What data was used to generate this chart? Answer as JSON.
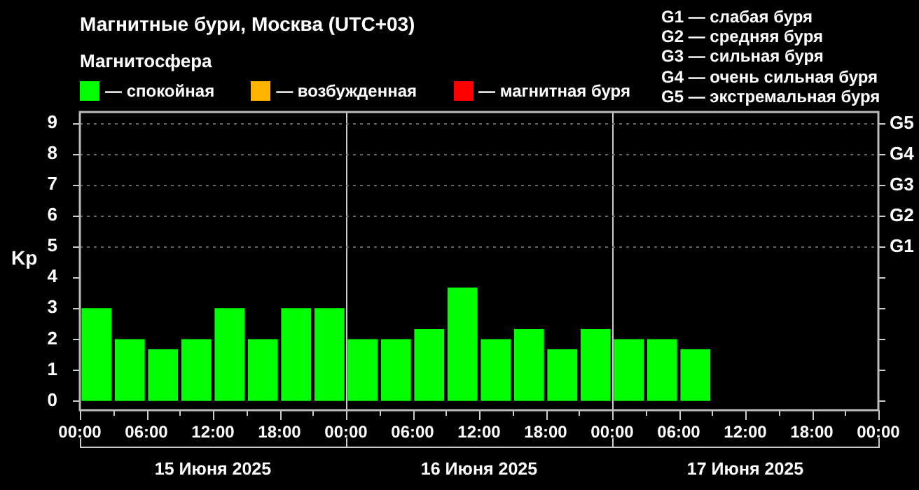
{
  "chart_data": {
    "type": "bar",
    "title": "Магнитные бури, Москва (UTC+03)",
    "legend_title": "Магнитосфера",
    "ylabel": "Kp",
    "x": [
      "2025-06-15T01:30",
      "2025-06-15T04:30",
      "2025-06-15T07:30",
      "2025-06-15T10:30",
      "2025-06-15T13:30",
      "2025-06-15T16:30",
      "2025-06-15T19:30",
      "2025-06-15T22:30",
      "2025-06-16T01:30",
      "2025-06-16T04:30",
      "2025-06-16T07:30",
      "2025-06-16T10:30",
      "2025-06-16T13:30",
      "2025-06-16T16:30",
      "2025-06-16T19:30",
      "2025-06-16T22:30",
      "2025-06-17T01:30",
      "2025-06-17T04:30",
      "2025-06-17T07:30"
    ],
    "series": [
      {
        "name": "— спокойная",
        "color": "#00ff00",
        "values": [
          3,
          2,
          1.67,
          2,
          3,
          2,
          3,
          3,
          2,
          2,
          2.33,
          3.67,
          2,
          2.33,
          1.67,
          2.33,
          2,
          2,
          1.67
        ]
      },
      {
        "name": "— возбужденная",
        "color": "#ffb400",
        "values": [
          null,
          null,
          null,
          null,
          null,
          null,
          null,
          null,
          null,
          null,
          null,
          null,
          null,
          null,
          null,
          null,
          null,
          null,
          null
        ]
      },
      {
        "name": "— магнитная буря",
        "color": "#ff0000",
        "values": [
          null,
          null,
          null,
          null,
          null,
          null,
          null,
          null,
          null,
          null,
          null,
          null,
          null,
          null,
          null,
          null,
          null,
          null,
          null
        ]
      }
    ],
    "xlim": [
      "2025-06-15T00:00",
      "2025-06-18T00:00"
    ],
    "xticks": [
      {
        "value": "2025-06-15T00:00",
        "label": "00:00"
      },
      {
        "value": "2025-06-15T03:00",
        "label": null
      },
      {
        "value": "2025-06-15T06:00",
        "label": "06:00"
      },
      {
        "value": "2025-06-15T09:00",
        "label": null
      },
      {
        "value": "2025-06-15T12:00",
        "label": "12:00"
      },
      {
        "value": "2025-06-15T15:00",
        "label": null
      },
      {
        "value": "2025-06-15T18:00",
        "label": "18:00"
      },
      {
        "value": "2025-06-15T21:00",
        "label": null
      },
      {
        "value": "2025-06-16T00:00",
        "label": "00:00"
      },
      {
        "value": "2025-06-16T03:00",
        "label": null
      },
      {
        "value": "2025-06-16T06:00",
        "label": "06:00"
      },
      {
        "value": "2025-06-16T09:00",
        "label": null
      },
      {
        "value": "2025-06-16T12:00",
        "label": "12:00"
      },
      {
        "value": "2025-06-16T15:00",
        "label": null
      },
      {
        "value": "2025-06-16T18:00",
        "label": "18:00"
      },
      {
        "value": "2025-06-16T21:00",
        "label": null
      },
      {
        "value": "2025-06-17T00:00",
        "label": "00:00"
      },
      {
        "value": "2025-06-17T03:00",
        "label": null
      },
      {
        "value": "2025-06-17T06:00",
        "label": "06:00"
      },
      {
        "value": "2025-06-17T09:00",
        "label": null
      },
      {
        "value": "2025-06-17T12:00",
        "label": "12:00"
      },
      {
        "value": "2025-06-17T15:00",
        "label": null
      },
      {
        "value": "2025-06-17T18:00",
        "label": "18:00"
      },
      {
        "value": "2025-06-17T21:00",
        "label": null
      },
      {
        "value": "2025-06-18T00:00",
        "label": "00:00"
      }
    ],
    "ylim": [
      -0.3,
      9.35
    ],
    "yticks": [
      0,
      1,
      2,
      3,
      4,
      5,
      6,
      7,
      8,
      9
    ],
    "ref_lines": [
      {
        "axis": "x",
        "value": "2025-06-16T00:00",
        "color": "#cccccc"
      },
      {
        "axis": "x",
        "value": "2025-06-17T00:00",
        "color": "#cccccc"
      },
      {
        "axis": "y",
        "value": 5,
        "label": "G1",
        "color": "#666666",
        "line_style": "dotted"
      },
      {
        "axis": "y",
        "value": 6,
        "label": "G2",
        "color": "#666666",
        "line_style": "dotted"
      },
      {
        "axis": "y",
        "value": 7,
        "label": "G3",
        "color": "#666666",
        "line_style": "dotted"
      },
      {
        "axis": "y",
        "value": 8,
        "label": "G4",
        "color": "#666666",
        "line_style": "dotted"
      },
      {
        "axis": "y",
        "value": 9,
        "label": "G5",
        "color": "#666666",
        "line_style": "dotted"
      }
    ],
    "legend": "top left",
    "annotations": [
      "G1 — слабая буря",
      "G2 — средняя буря",
      "G3 — сильная буря",
      "G4 — очень сильная буря",
      "G5 — экстремальная буря",
      "15 Июня 2025",
      "16 Июня 2025",
      "17 Июня 2025"
    ]
  }
}
